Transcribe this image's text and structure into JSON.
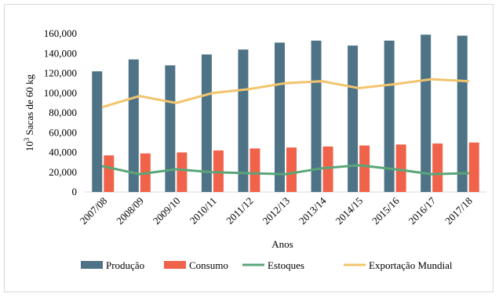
{
  "chart_data": {
    "type": "bar",
    "title": "",
    "xlabel": "Anos",
    "ylabel_parts": {
      "base": "10",
      "sup": "3",
      "rest": " Sacas de 60 kg"
    },
    "ylim": [
      0,
      160000
    ],
    "yticks": [
      0,
      20000,
      40000,
      60000,
      80000,
      100000,
      120000,
      140000,
      160000
    ],
    "ytick_labels": [
      "0",
      "20,000",
      "40,000",
      "60,000",
      "80,000",
      "100,000",
      "120,000",
      "140,000",
      "160,000"
    ],
    "grid": false,
    "legend_position": "bottom",
    "categories": [
      "2007/08",
      "2008/09",
      "2009/10",
      "2010/11",
      "2011/12",
      "2012/13",
      "2013/14",
      "2014/15",
      "2015/16",
      "2016/17",
      "2017/18"
    ],
    "series": [
      {
        "name": "Produção",
        "kind": "bar",
        "color": "#4e7386",
        "values": [
          122000,
          134000,
          128000,
          139000,
          144000,
          151000,
          153000,
          148000,
          153000,
          159000,
          158000
        ]
      },
      {
        "name": "Consumo",
        "kind": "bar",
        "color": "#f0624a",
        "values": [
          37000,
          39000,
          40000,
          42000,
          44000,
          45000,
          46000,
          47000,
          48000,
          49000,
          50000
        ]
      },
      {
        "name": "Estoques",
        "kind": "line",
        "color": "#5aa678",
        "values": [
          26000,
          18000,
          23000,
          20000,
          19000,
          18000,
          24000,
          27000,
          23000,
          18000,
          19000
        ]
      },
      {
        "name": "Exportação Mundial",
        "kind": "line",
        "color": "#f2c46d",
        "values": [
          86000,
          97000,
          90000,
          100000,
          104000,
          110000,
          112000,
          105000,
          109000,
          114000,
          112000
        ]
      }
    ]
  }
}
